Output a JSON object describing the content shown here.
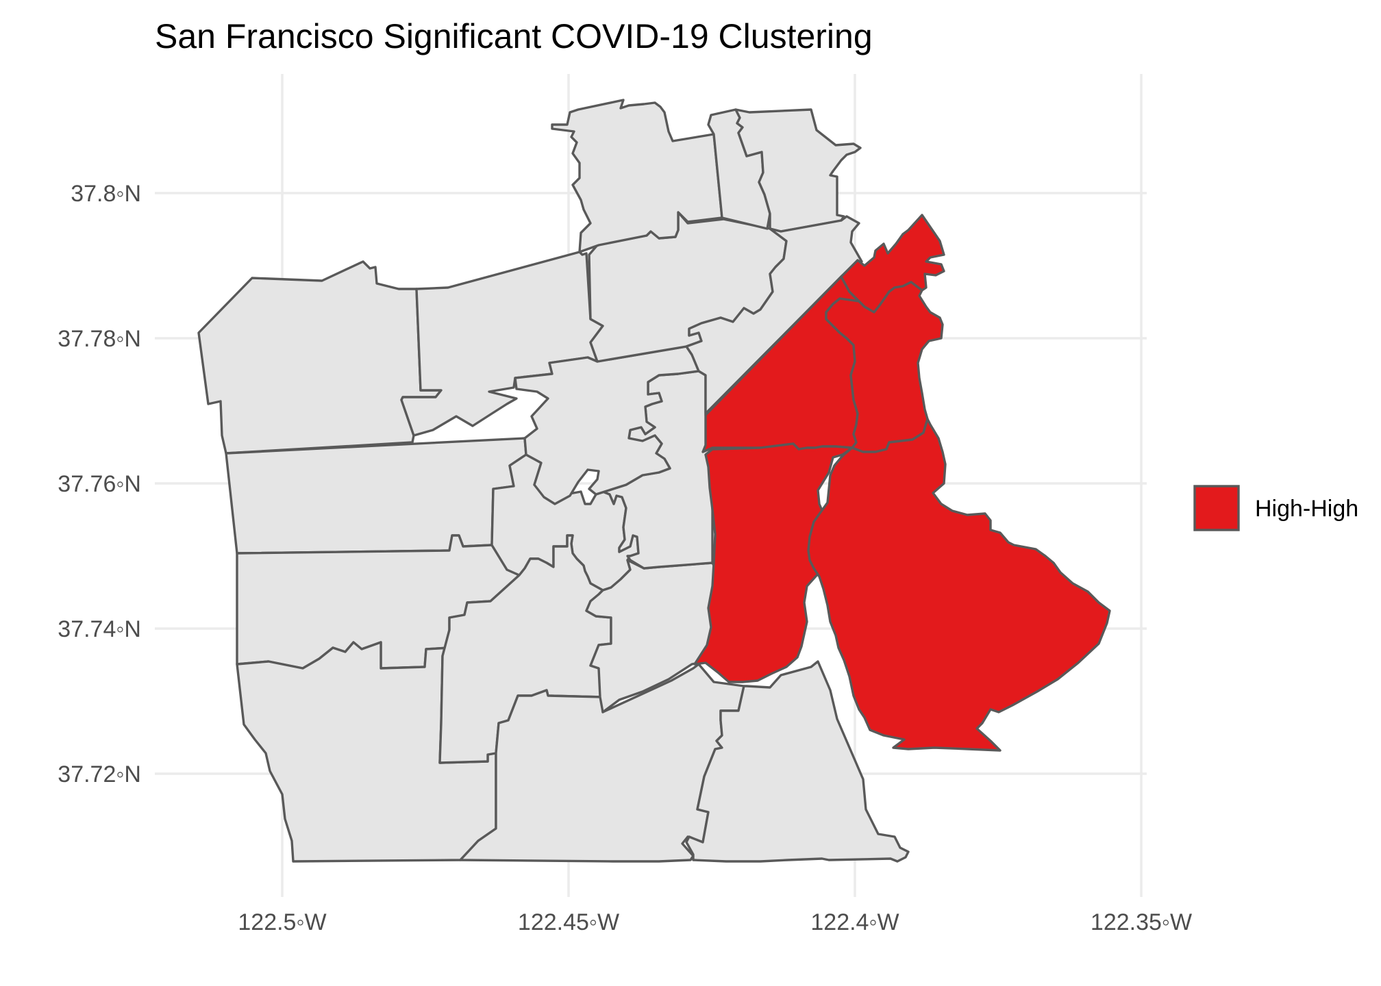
{
  "title": "San Francisco Significant COVID-19 Clustering",
  "colors": {
    "high_high": "#e31a1c",
    "not_significant": "#e5e5e5",
    "border": "#595959",
    "grid": "#ebebeb"
  },
  "legend": {
    "items": [
      {
        "label": "High-High",
        "color": "#e31a1c"
      }
    ]
  },
  "axes": {
    "x_ticks": [
      "122.5◦W",
      "122.45◦W",
      "122.4◦W",
      "122.35◦W"
    ],
    "y_ticks": [
      "37.8◦N",
      "37.78◦N",
      "37.76◦N",
      "37.74◦N",
      "37.72◦N"
    ]
  },
  "chart_data": {
    "type": "choropleth",
    "title": "San Francisco Significant COVID-19 Clustering",
    "x_ticks_deg_w": [
      122.5,
      122.45,
      122.4,
      122.35
    ],
    "y_ticks_deg_n": [
      37.8,
      37.78,
      37.76,
      37.74,
      37.72
    ],
    "grid": true,
    "legend_position": "right",
    "categories": [
      "High-High"
    ],
    "high_high_region_count": 5,
    "not_significant_region_count": 21
  }
}
